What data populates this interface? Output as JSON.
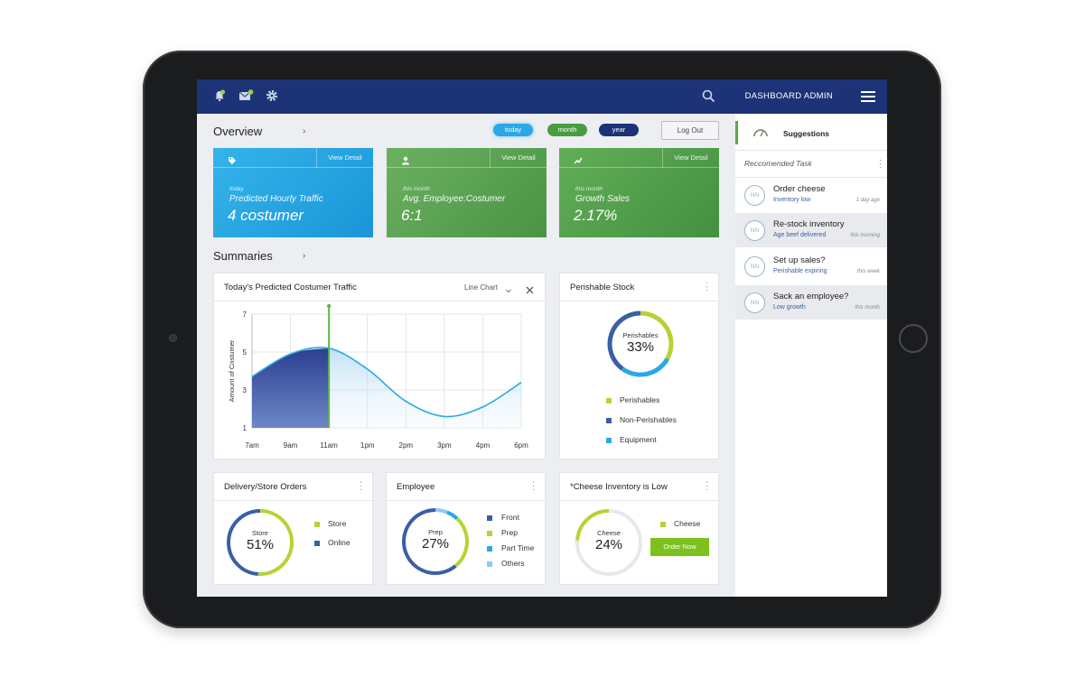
{
  "header": {
    "title": "DASHBOARD ADMIN",
    "icons": [
      "bell-icon",
      "mail-icon",
      "gear-icon",
      "search-icon",
      "menu-icon"
    ]
  },
  "overview": {
    "title": "Overview",
    "filters": [
      {
        "label": "today",
        "color": "#2aa8e6"
      },
      {
        "label": "month",
        "color": "#4a9c3f"
      },
      {
        "label": "year",
        "color": "#1d3377"
      }
    ],
    "logout_label": "Log Out"
  },
  "kpis": [
    {
      "icon": "tag-icon",
      "view_detail": "View Detail",
      "period": "today",
      "label": "Predicted Hourly Traffic",
      "value": "4 costumer"
    },
    {
      "icon": "user-icon",
      "view_detail": "View Detail",
      "period": "this month",
      "label": "Avg. Employee:Costumer",
      "value": "6:1"
    },
    {
      "icon": "trend-icon",
      "view_detail": "View Detail",
      "period": "this month",
      "label": "Growth Sales",
      "value": "2.17%"
    }
  ],
  "summaries": {
    "title": "Summaries"
  },
  "traffic_chart": {
    "title": "Today's Predicted Costumer Traffic",
    "chart_type_label": "Line Chart",
    "chart_data": {
      "type": "area",
      "ylabel": "Amount of Costumer",
      "ylim": [
        1,
        7
      ],
      "yticks": [
        "7",
        "5",
        "3",
        "1"
      ],
      "xticks": [
        "7am",
        "9am",
        "11am",
        "1pm",
        "2pm",
        "3pm",
        "4pm",
        "6pm"
      ],
      "series": [
        {
          "x": [
            "7am",
            "9am",
            "11am",
            "1pm",
            "2pm",
            "3pm",
            "4pm",
            "6pm"
          ],
          "y": [
            3.7,
            4.9,
            5.2,
            4.1,
            2.4,
            1.6,
            2.1,
            3.4
          ]
        }
      ],
      "current_marker": "11am"
    }
  },
  "perishable": {
    "title": "Perishable Stock",
    "center_label": "Perishables",
    "center_value": "33%",
    "percent": 0.33,
    "legend": [
      {
        "label": "Perishables",
        "color": "#b5d334"
      },
      {
        "label": "Non-Perishables",
        "color": "#3a5ea8"
      },
      {
        "label": "Equipment",
        "color": "#2aa8e6"
      }
    ]
  },
  "orders": {
    "title": "Delivery/Store Orders",
    "center_label": "Store",
    "center_value": "51%",
    "percent": 0.51,
    "legend": [
      {
        "label": "Store",
        "color": "#b5d334"
      },
      {
        "label": "Online",
        "color": "#3a5ea8"
      }
    ]
  },
  "employee": {
    "title": "Employee",
    "center_label": "Prep",
    "center_value": "27%",
    "legend": [
      {
        "label": "Front",
        "color": "#3a5ea8"
      },
      {
        "label": "Prep",
        "color": "#b5d334"
      },
      {
        "label": "Part Time",
        "color": "#2aa8e6"
      },
      {
        "label": "Others",
        "color": "#8fc9ee"
      }
    ]
  },
  "cheese": {
    "title": "*Cheese Inventory is Low",
    "center_label": "Cheese",
    "center_value": "24%",
    "percent": 0.24,
    "legend": [
      {
        "label": "Cheese",
        "color": "#b5d334"
      }
    ],
    "order_label": "Order Now"
  },
  "sidebar": {
    "title": "Suggestions",
    "subtitle": "Reccomended Task",
    "tasks": [
      {
        "avatar": "NN",
        "title": "Order cheese",
        "sub": "Inventory low",
        "time": "1 day ago"
      },
      {
        "avatar": "NN",
        "title": "Re-stock inventory",
        "sub": "Age beef delivered",
        "time": "this morning"
      },
      {
        "avatar": "NN",
        "title": "Set up sales?",
        "sub": "Perishable expiring",
        "time": "this week"
      },
      {
        "avatar": "NN",
        "title": "Sack an employee?",
        "sub": "Low growth",
        "time": "this month"
      }
    ]
  }
}
